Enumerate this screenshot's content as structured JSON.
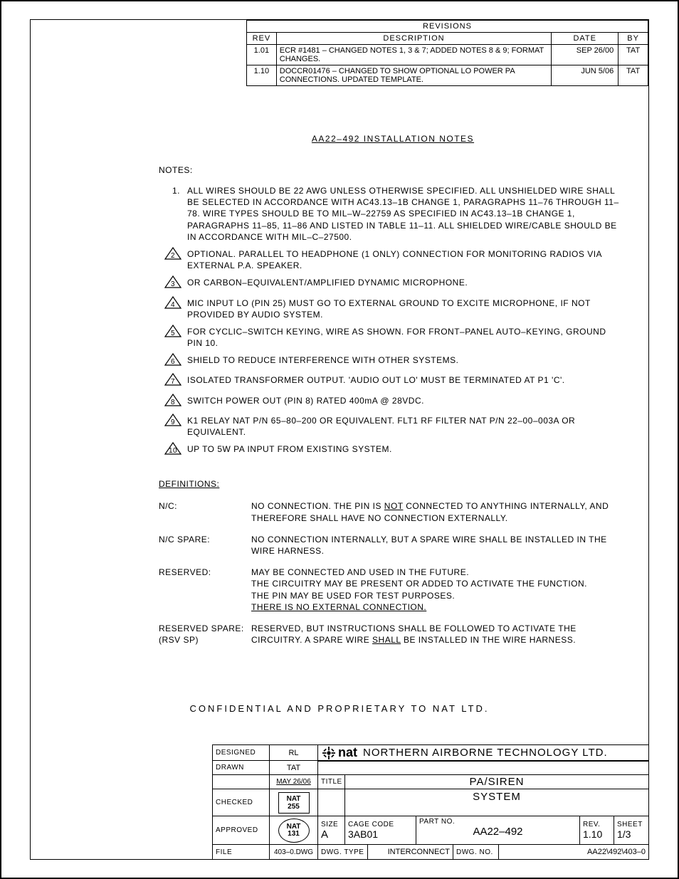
{
  "revisions": {
    "header": "REVISIONS",
    "cols": {
      "rev": "REV",
      "desc": "DESCRIPTION",
      "date": "DATE",
      "by": "BY"
    },
    "rows": [
      {
        "rev": "1.01",
        "desc": "ECR #1481 – CHANGED NOTES 1, 3 & 7; ADDED NOTES 8 & 9; FORMAT CHANGES.",
        "date": "SEP 26/00",
        "by": "TAT"
      },
      {
        "rev": "1.10",
        "desc": "DOCCR01476 – CHANGED TO SHOW OPTIONAL LO POWER PA CONNECTIONS. UPDATED TEMPLATE.",
        "date": "JUN 5/06",
        "by": "TAT"
      }
    ]
  },
  "title": "AA22–492   INSTALLATION NOTES",
  "notes_label": "NOTES:",
  "notes": [
    {
      "n": "1.",
      "tri": false,
      "text": "ALL WIRES SHOULD BE 22 AWG UNLESS OTHERWISE SPECIFIED. ALL UNSHIELDED WIRE SHALL BE SELECTED IN ACCORDANCE WITH AC43.13–1B CHANGE 1, PARAGRAPHS 11–76 THROUGH 11–78. WIRE TYPES SHOULD BE TO MIL–W–22759 AS SPECIFIED IN AC43.13–1B CHANGE 1, PARAGRAPHS 11–85, 11–86 AND LISTED IN TABLE 11–11. ALL SHIELDED WIRE/CABLE SHOULD BE IN ACCORDANCE WITH MIL–C–27500."
    },
    {
      "n": "2",
      "tri": true,
      "text": "OPTIONAL. PARALLEL TO HEADPHONE (1 ONLY) CONNECTION FOR MONITORING RADIOS VIA EXTERNAL P.A. SPEAKER."
    },
    {
      "n": "3",
      "tri": true,
      "text": "OR CARBON–EQUIVALENT/AMPLIFIED DYNAMIC MICROPHONE."
    },
    {
      "n": "4",
      "tri": true,
      "text": "MIC INPUT LO (PIN 25) MUST GO TO EXTERNAL GROUND TO EXCITE MICROPHONE, IF NOT PROVIDED BY AUDIO SYSTEM."
    },
    {
      "n": "5",
      "tri": true,
      "text": "FOR CYCLIC–SWITCH KEYING, WIRE AS SHOWN. FOR FRONT–PANEL AUTO–KEYING, GROUND PIN 10."
    },
    {
      "n": "6",
      "tri": true,
      "text": "SHIELD TO REDUCE INTERFERENCE WITH OTHER SYSTEMS."
    },
    {
      "n": "7",
      "tri": true,
      "text": "ISOLATED TRANSFORMER OUTPUT. 'AUDIO OUT LO' MUST BE TERMINATED AT P1 'C'."
    },
    {
      "n": "8",
      "tri": true,
      "text": "SWITCH POWER OUT (PIN 8) RATED 400mA @ 28VDC."
    },
    {
      "n": "9",
      "tri": true,
      "text": "K1 RELAY NAT P/N 65–80–200 OR EQUIVALENT. FLT1 RF FILTER NAT P/N 22–00–003A OR EQUIVALENT."
    },
    {
      "n": "10",
      "tri": true,
      "text": "UP TO 5W PA INPUT FROM EXISTING SYSTEM."
    }
  ],
  "defs_label": "DEFINITIONS:",
  "defs": [
    {
      "term": "N/C:",
      "html": "NO CONNECTION. THE PIN IS <span class='ul'>NOT</span> CONNECTED TO ANYTHING INTERNALLY, AND THEREFORE SHALL HAVE NO CONNECTION EXTERNALLY."
    },
    {
      "term": "N/C SPARE:",
      "html": "NO CONNECTION INTERNALLY, BUT A SPARE WIRE SHALL BE INSTALLED IN THE WIRE HARNESS."
    },
    {
      "term": "RESERVED:",
      "html": "MAY BE CONNECTED AND USED IN THE FUTURE.<br>THE CIRCUITRY MAY BE PRESENT OR ADDED TO ACTIVATE THE FUNCTION.<br>THE PIN MAY BE USED FOR TEST PURPOSES.<br><span class='ul'>THERE IS NO EXTERNAL CONNECTION.</span>"
    },
    {
      "term": "RESERVED SPARE:<br>(RSV SP)",
      "html": "RESERVED, BUT INSTRUCTIONS SHALL BE FOLLOWED TO ACTIVATE THE CIRCUITRY. A SPARE WIRE <span class='ul'>SHALL</span> BE INSTALLED IN THE WIRE HARNESS."
    }
  ],
  "confidential": "CONFIDENTIAL  AND  PROPRIETARY  TO  NAT  LTD.",
  "tb": {
    "designed_l": "DESIGNED",
    "designed_v": "RL",
    "drawn_l": "DRAWN",
    "drawn_v": "TAT",
    "date_v": "MAY 26/06",
    "checked_l": "CHECKED",
    "checked_v1": "NAT",
    "checked_v2": "255",
    "approved_l": "APPROVED",
    "approved_v1": "NAT",
    "approved_v2": "131",
    "file_l": "FILE",
    "file_v": "403–0.DWG",
    "company": "NORTHERN  AIRBORNE  TECHNOLOGY  LTD.",
    "logo": "nat",
    "title_l": "TITLE",
    "title_v1": "PA/SIREN",
    "title_v2": "SYSTEM",
    "size_l": "SIZE",
    "size_v": "A",
    "cage_l": "CAGE CODE",
    "cage_v": "3AB01",
    "part_l": "PART NO.",
    "part_v": "AA22–492",
    "rev_l": "REV.",
    "rev_v": "1.10",
    "sheet_l": "SHEET",
    "sheet_v": "1/3",
    "dwgtype_l": "DWG. TYPE",
    "dwgtype_v": "INTERCONNECT",
    "dwgno_l": "DWG. NO.",
    "dwgno_v": "AA22\\492\\403–0"
  }
}
